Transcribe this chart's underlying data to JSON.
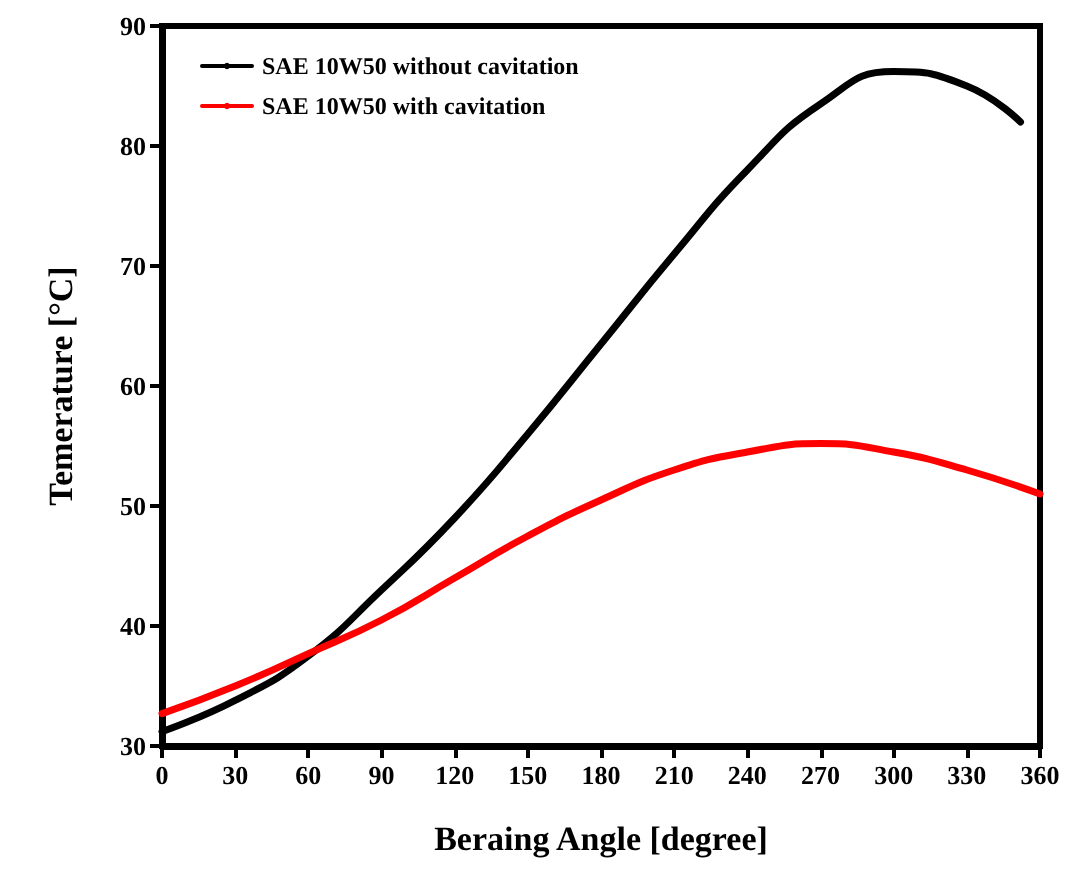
{
  "chart_data": {
    "type": "line",
    "xlabel": "Beraing Angle [degree]",
    "ylabel": "Temerature [°C]",
    "x": [
      0,
      30,
      60,
      90,
      120,
      150,
      180,
      210,
      240,
      270,
      300,
      330,
      352
    ],
    "series": [
      {
        "name": "SAE 10W50 without cavitation",
        "color": "#000000",
        "values": [
          31.2,
          33.8,
          37.5,
          43,
          49,
          56,
          63.5,
          71,
          78,
          83.5,
          86.2,
          85,
          82
        ]
      },
      {
        "name": "SAE 10W50 with cavitation",
        "color": "#ff0000",
        "x": [
          0,
          30,
          60,
          90,
          120,
          150,
          180,
          210,
          240,
          270,
          300,
          330,
          360
        ],
        "values": [
          32.7,
          35,
          37.7,
          40.5,
          44,
          47.5,
          50.5,
          53,
          54.5,
          55.2,
          54.5,
          53,
          51
        ]
      }
    ],
    "xlim": [
      0,
      360
    ],
    "xticks": [
      0,
      30,
      60,
      90,
      120,
      150,
      180,
      210,
      240,
      270,
      300,
      330,
      360
    ],
    "ylim": [
      30,
      90
    ],
    "yticks": [
      30,
      40,
      50,
      60,
      70,
      80,
      90
    ],
    "grid": false,
    "legend": "top left",
    "marker": "none",
    "line_style": "solid"
  }
}
